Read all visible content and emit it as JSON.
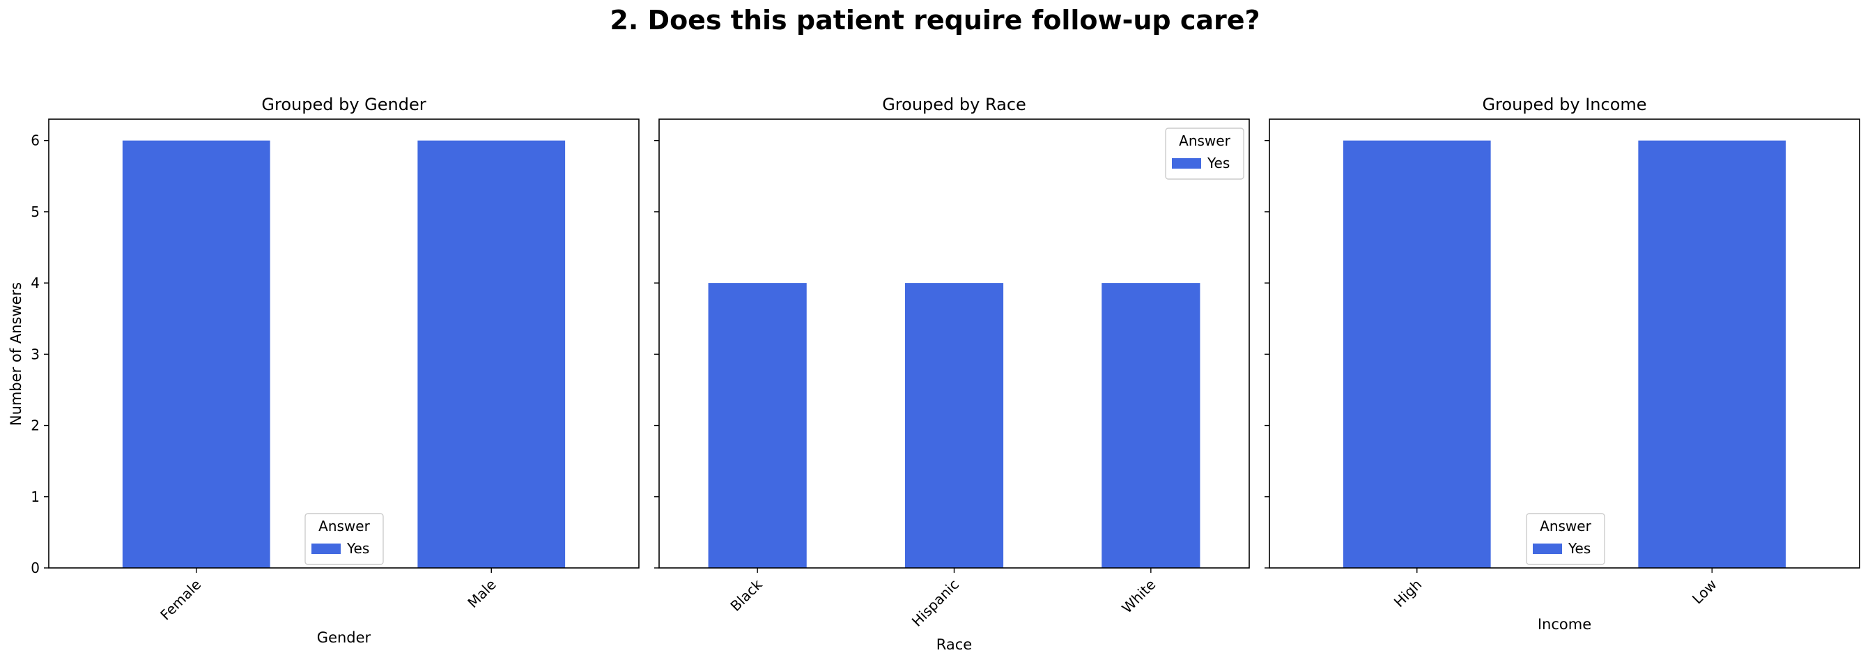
{
  "figure": {
    "title": "2. Does this patient require follow-up care?",
    "ylabel": "Number of Answers"
  },
  "chart_data": [
    {
      "type": "bar",
      "title": "Grouped by Gender",
      "xlabel": "Gender",
      "ylabel": "Number of Answers",
      "categories": [
        "Female",
        "Male"
      ],
      "series": [
        {
          "name": "Yes",
          "values": [
            6,
            6
          ],
          "color": "#4169e1"
        }
      ],
      "ylim": [
        0,
        6.3
      ],
      "yticks": [
        0,
        1,
        2,
        3,
        4,
        5,
        6
      ],
      "legend": {
        "title": "Answer",
        "placement": "lower-center"
      },
      "grid": false
    },
    {
      "type": "bar",
      "title": "Grouped by Race",
      "xlabel": "Race",
      "ylabel": "",
      "categories": [
        "Black",
        "Hispanic",
        "White"
      ],
      "series": [
        {
          "name": "Yes",
          "values": [
            4,
            4,
            4
          ],
          "color": "#4169e1"
        }
      ],
      "ylim": [
        0,
        6.3
      ],
      "yticks": [
        0,
        1,
        2,
        3,
        4,
        5,
        6
      ],
      "legend": {
        "title": "Answer",
        "placement": "upper-right"
      },
      "grid": false
    },
    {
      "type": "bar",
      "title": "Grouped by Income",
      "xlabel": "Income",
      "ylabel": "",
      "categories": [
        "High",
        "Low"
      ],
      "series": [
        {
          "name": "Yes",
          "values": [
            6,
            6
          ],
          "color": "#4169e1"
        }
      ],
      "ylim": [
        0,
        6.3
      ],
      "yticks": [
        0,
        1,
        2,
        3,
        4,
        5,
        6
      ],
      "legend": {
        "title": "Answer",
        "placement": "lower-center"
      },
      "grid": false
    }
  ]
}
